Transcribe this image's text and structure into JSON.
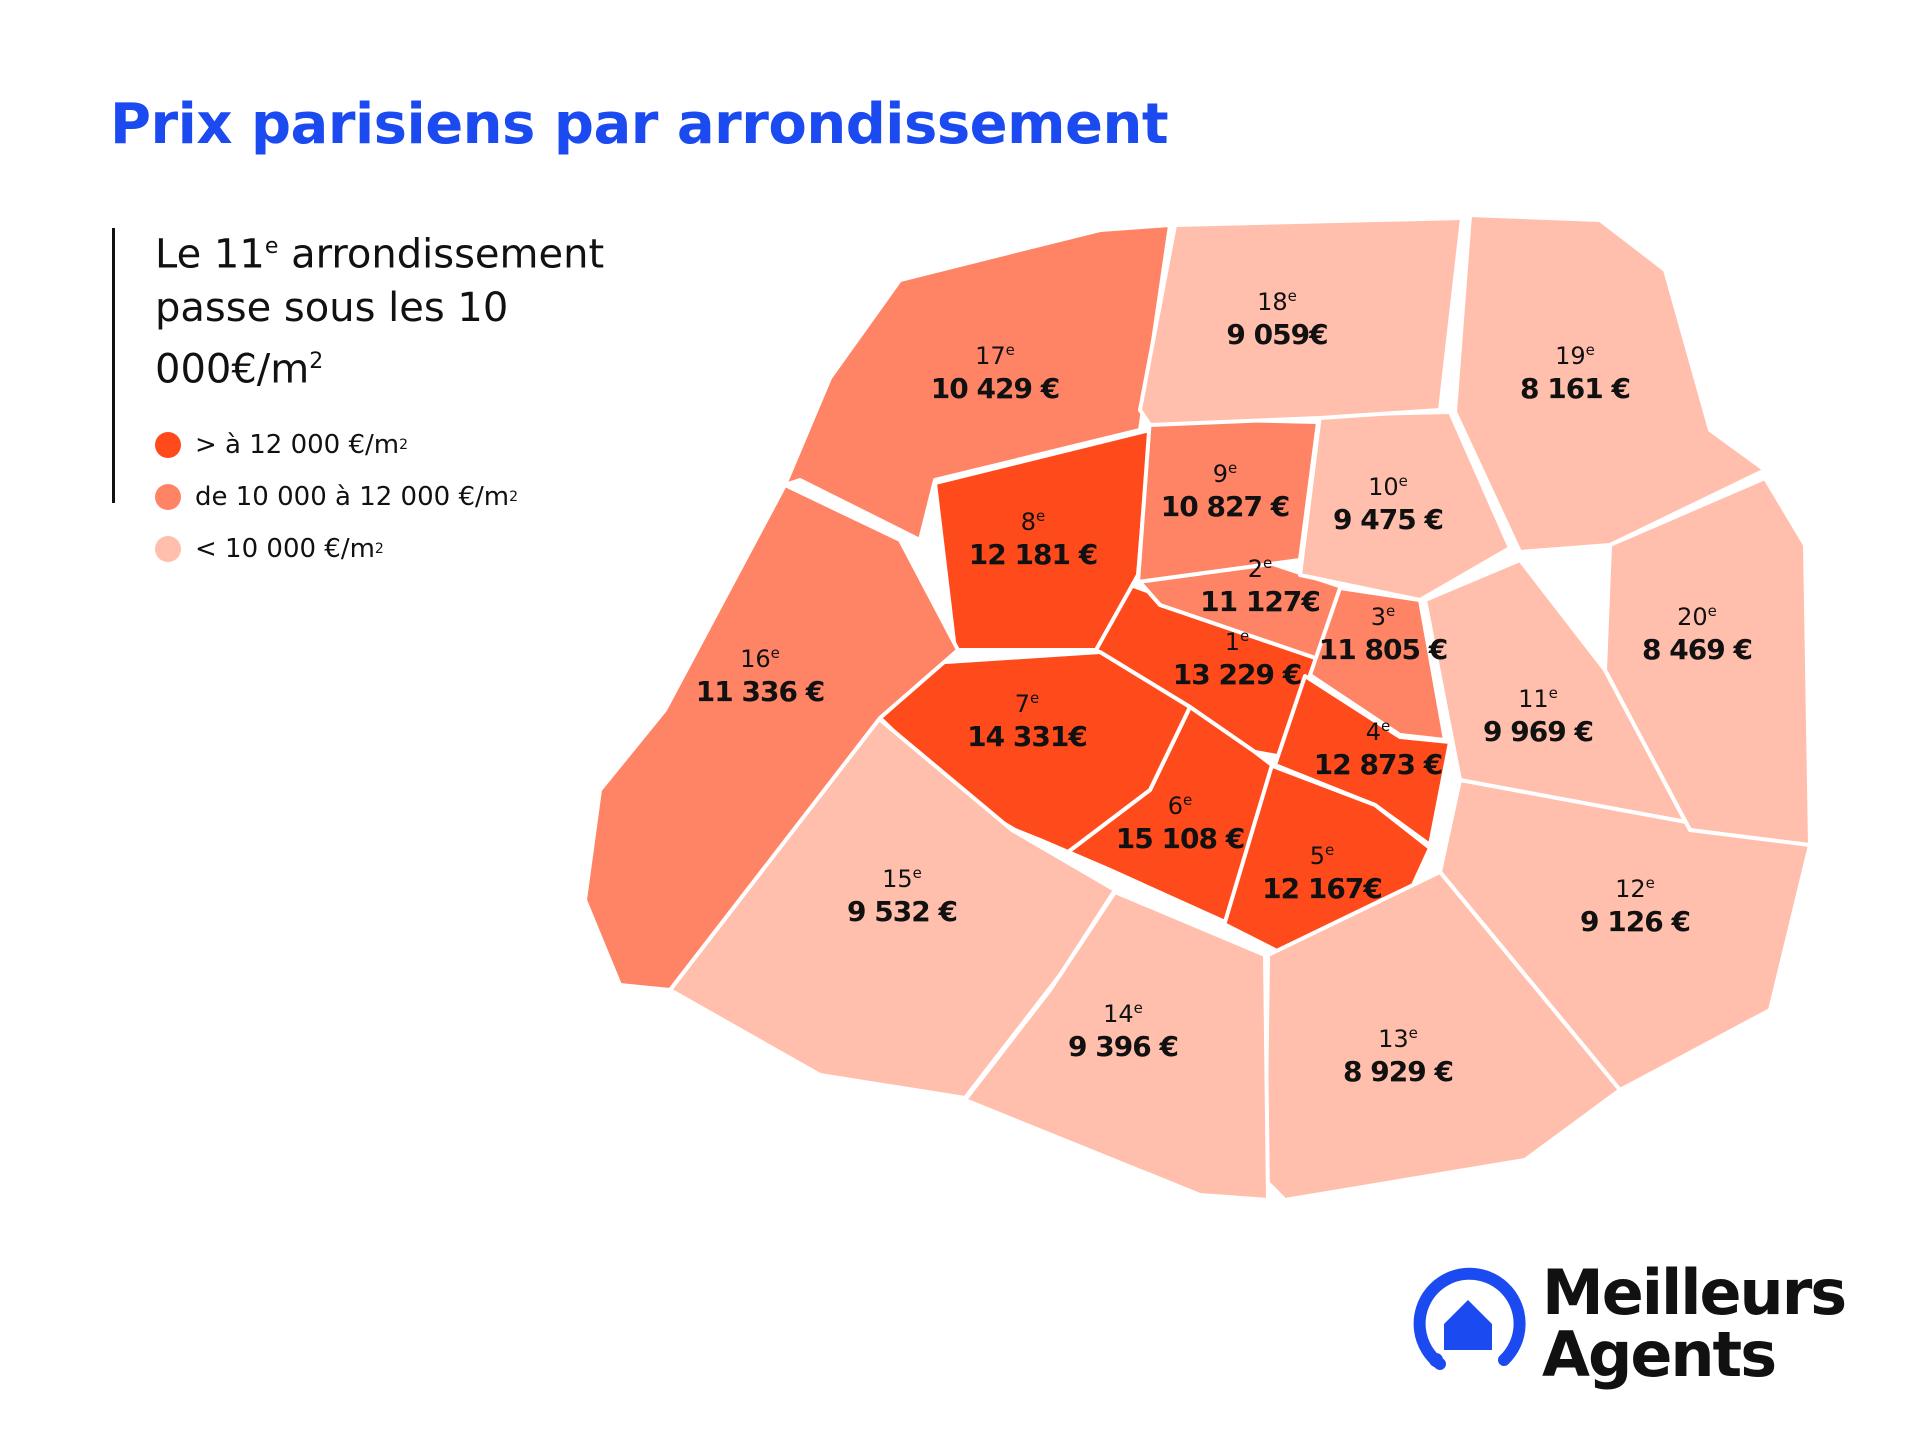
{
  "title": "Prix parisiens par arrondissement",
  "subtitle": {
    "line1_pre": "Le 11",
    "line1_sup": "e",
    "line1_post": " arrondissement",
    "line2": "passe sous les 10 000€/m",
    "line2_sup": "2"
  },
  "legend": [
    {
      "label": "> à 12 000 €/m",
      "sup": "2",
      "color": "#ff4a1c"
    },
    {
      "label": "de 10 000 à 12 000 €/m",
      "sup": "2",
      "color": "#ff8466"
    },
    {
      "label": "< 10 000 €/m",
      "sup": "2",
      "color": "#ffbfac"
    }
  ],
  "arrondissements": [
    {
      "num": "1",
      "suffix": "e",
      "price": "13 229 €",
      "value": 13229,
      "tier": 1
    },
    {
      "num": "2",
      "suffix": "e",
      "price": "11 127€",
      "value": 11127,
      "tier": 2
    },
    {
      "num": "3",
      "suffix": "e",
      "price": "11 805 €",
      "value": 11805,
      "tier": 2
    },
    {
      "num": "4",
      "suffix": "e",
      "price": "12 873 €",
      "value": 12873,
      "tier": 1
    },
    {
      "num": "5",
      "suffix": "e",
      "price": "12 167€",
      "value": 12167,
      "tier": 1
    },
    {
      "num": "6",
      "suffix": "e",
      "price": "15 108 €",
      "value": 15108,
      "tier": 1
    },
    {
      "num": "7",
      "suffix": "e",
      "price": "14 331€",
      "value": 14331,
      "tier": 1
    },
    {
      "num": "8",
      "suffix": "e",
      "price": "12 181 €",
      "value": 12181,
      "tier": 1
    },
    {
      "num": "9",
      "suffix": "e",
      "price": "10 827 €",
      "value": 10827,
      "tier": 2
    },
    {
      "num": "10",
      "suffix": "e",
      "price": "9 475 €",
      "value": 9475,
      "tier": 3
    },
    {
      "num": "11",
      "suffix": "e",
      "price": "9 969 €",
      "value": 9969,
      "tier": 3
    },
    {
      "num": "12",
      "suffix": "e",
      "price": "9 126 €",
      "value": 9126,
      "tier": 3
    },
    {
      "num": "13",
      "suffix": "e",
      "price": "8 929 €",
      "value": 8929,
      "tier": 3
    },
    {
      "num": "14",
      "suffix": "e",
      "price": "9 396 €",
      "value": 9396,
      "tier": 3
    },
    {
      "num": "15",
      "suffix": "e",
      "price": "9 532 €",
      "value": 9532,
      "tier": 3
    },
    {
      "num": "16",
      "suffix": "e",
      "price": "11 336 €",
      "value": 11336,
      "tier": 2
    },
    {
      "num": "17",
      "suffix": "e",
      "price": "10 429 €",
      "value": 10429,
      "tier": 2
    },
    {
      "num": "18",
      "suffix": "e",
      "price": "9 059€",
      "value": 9059,
      "tier": 3
    },
    {
      "num": "19",
      "suffix": "e",
      "price": "8 161 €",
      "value": 8161,
      "tier": 3
    },
    {
      "num": "20",
      "suffix": "e",
      "price": "8 469 €",
      "value": 8469,
      "tier": 3
    }
  ],
  "tier_colors": {
    "1": "#ff4a1c",
    "2": "#ff8466",
    "3": "#ffbfac"
  },
  "logo": {
    "line1": "Meilleurs",
    "line2": "Agents",
    "color": "#1a4af0",
    "icon": "house-icon"
  }
}
